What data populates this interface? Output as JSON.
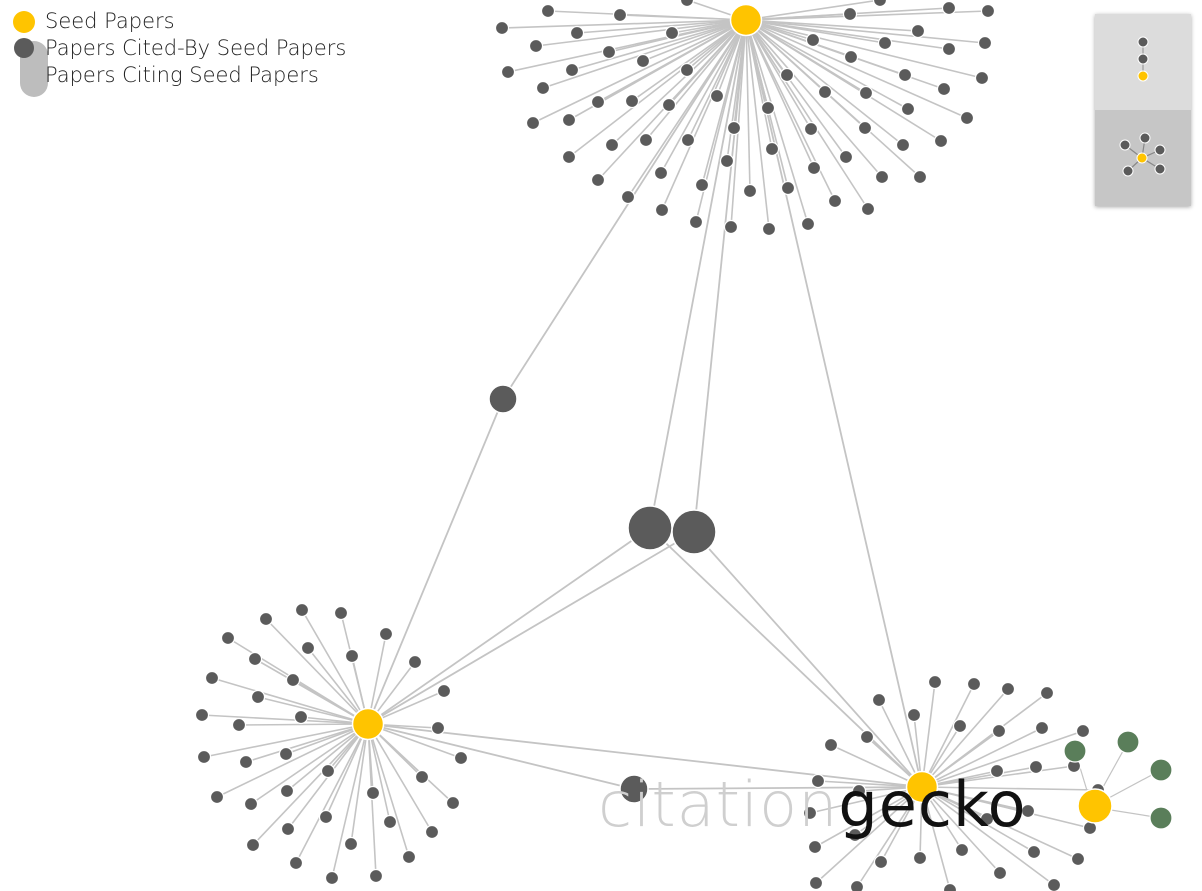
{
  "legend": {
    "seed": "Seed Papers",
    "cited_by": "Papers Cited-By Seed Papers",
    "citing": "Papers Citing Seed Papers"
  },
  "colors": {
    "seed": "#FFC400",
    "cited": "#5b5b5b",
    "citing": "#5a7e5a",
    "edge": "#c4c4c4",
    "background": "#ffffff"
  },
  "branding": {
    "word1": "citation",
    "word2": "gecko"
  },
  "minimap": {
    "views": [
      "list-view",
      "graph-view"
    ]
  }
}
